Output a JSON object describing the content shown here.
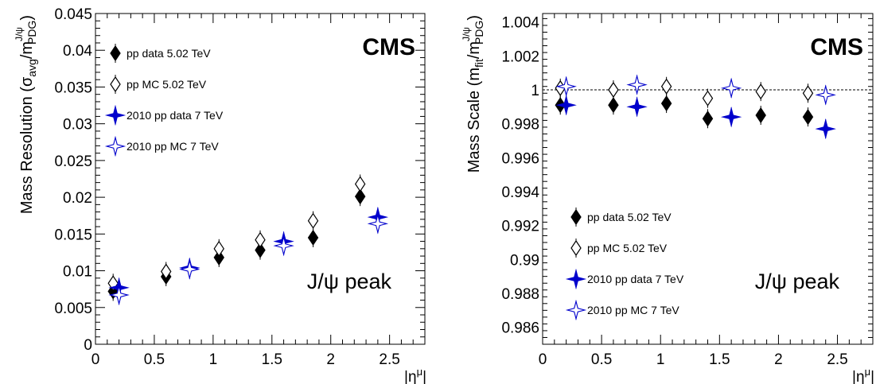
{
  "colors": {
    "data_pp": "#000000",
    "data_2010": "#0000cc",
    "grid": "#000000"
  },
  "chart_data": [
    {
      "type": "scatter",
      "cms_label": "CMS",
      "annotation": "J/ψ peak",
      "ylabel": "Mass Resolution (σavg/mJ/ψPDG)",
      "ylabel_parts": {
        "main": "Mass Resolution (σ",
        "sub1": "avg",
        "mid": "/m",
        "sup": "J/ψ",
        "sub2": "PDG",
        "end": ")"
      },
      "xlabel": "|η^μ|",
      "xlabel_parts": {
        "main": "|η",
        "sup": "μ",
        "end": "|"
      },
      "xlim": [
        0,
        2.8
      ],
      "ylim": [
        0,
        0.045
      ],
      "xticks": [
        0,
        0.5,
        1,
        1.5,
        2,
        2.5
      ],
      "xtick_labels": [
        "0",
        "0.5",
        "1",
        "1.5",
        "2",
        "2.5"
      ],
      "yticks": [
        0,
        0.005,
        0.01,
        0.015,
        0.02,
        0.025,
        0.03,
        0.035,
        0.04,
        0.045
      ],
      "ytick_labels": [
        "0",
        "0.005",
        "0.01",
        "0.015",
        "0.02",
        "0.025",
        "0.03",
        "0.035",
        "0.04",
        "0.045"
      ],
      "legend_position": "top-left",
      "series": [
        {
          "name": "pp data 5.02 TeV",
          "marker": "diamond-filled",
          "color": "#000000",
          "x": [
            0.15,
            0.6,
            1.05,
            1.4,
            1.85,
            2.25
          ],
          "y": [
            0.0072,
            0.0092,
            0.0118,
            0.0128,
            0.0145,
            0.0201
          ]
        },
        {
          "name": "pp MC 5.02 TeV",
          "marker": "diamond-open",
          "color": "#000000",
          "x": [
            0.15,
            0.6,
            1.05,
            1.4,
            1.85,
            2.25
          ],
          "y": [
            0.0083,
            0.0099,
            0.013,
            0.0142,
            0.0168,
            0.0218
          ]
        },
        {
          "name": "2010 pp data 7 TeV",
          "marker": "star-filled",
          "color": "#0000cc",
          "x": [
            0.2,
            0.8,
            1.6,
            2.4
          ],
          "y": [
            0.0077,
            0.0104,
            0.014,
            0.0173
          ]
        },
        {
          "name": "2010 pp MC 7 TeV",
          "marker": "star-open",
          "color": "#0000cc",
          "x": [
            0.2,
            0.8,
            1.6,
            2.4
          ],
          "y": [
            0.0067,
            0.0102,
            0.0134,
            0.0164
          ]
        }
      ]
    },
    {
      "type": "scatter",
      "cms_label": "CMS",
      "annotation": "J/ψ peak",
      "ylabel": "Mass Scale (mfit/mJ/ψPDG)",
      "ylabel_parts": {
        "main": "Mass Scale (m",
        "sub1": "fit",
        "mid": "/m",
        "sup": "J/ψ",
        "sub2": "PDG",
        "end": ")"
      },
      "xlabel": "|η^μ|",
      "xlabel_parts": {
        "main": "|η",
        "sup": "μ",
        "end": "|"
      },
      "xlim": [
        0,
        2.8
      ],
      "ylim": [
        0.985,
        1.0045
      ],
      "reference_line": 1.0,
      "xticks": [
        0,
        0.5,
        1,
        1.5,
        2,
        2.5
      ],
      "xtick_labels": [
        "0",
        "0.5",
        "1",
        "1.5",
        "2",
        "2.5"
      ],
      "yticks": [
        0.986,
        0.988,
        0.99,
        0.992,
        0.994,
        0.996,
        0.998,
        1,
        1.002,
        1.004
      ],
      "ytick_labels": [
        "0.986",
        "0.988",
        "0.99",
        "0.992",
        "0.994",
        "0.996",
        "0.998",
        "1",
        "1.002",
        "1.004"
      ],
      "legend_position": "bottom-left",
      "series": [
        {
          "name": "pp data 5.02 TeV",
          "marker": "diamond-filled",
          "color": "#000000",
          "x": [
            0.15,
            0.6,
            1.05,
            1.4,
            1.85,
            2.25
          ],
          "y": [
            0.9991,
            0.9991,
            0.9992,
            0.9983,
            0.9985,
            0.9984
          ]
        },
        {
          "name": "pp MC 5.02 TeV",
          "marker": "diamond-open",
          "color": "#000000",
          "x": [
            0.15,
            0.6,
            1.05,
            1.4,
            1.85,
            2.25
          ],
          "y": [
            1.0001,
            1.0,
            1.0002,
            0.9995,
            0.9999,
            0.9998
          ]
        },
        {
          "name": "2010 pp data 7 TeV",
          "marker": "star-filled",
          "color": "#0000cc",
          "x": [
            0.2,
            0.8,
            1.6,
            2.4
          ],
          "y": [
            0.9991,
            0.999,
            0.9984,
            0.9977
          ]
        },
        {
          "name": "2010 pp MC 7 TeV",
          "marker": "star-open",
          "color": "#0000cc",
          "x": [
            0.2,
            0.8,
            1.6,
            2.4
          ],
          "y": [
            1.0002,
            1.0003,
            1.0001,
            0.9997
          ]
        }
      ]
    }
  ]
}
